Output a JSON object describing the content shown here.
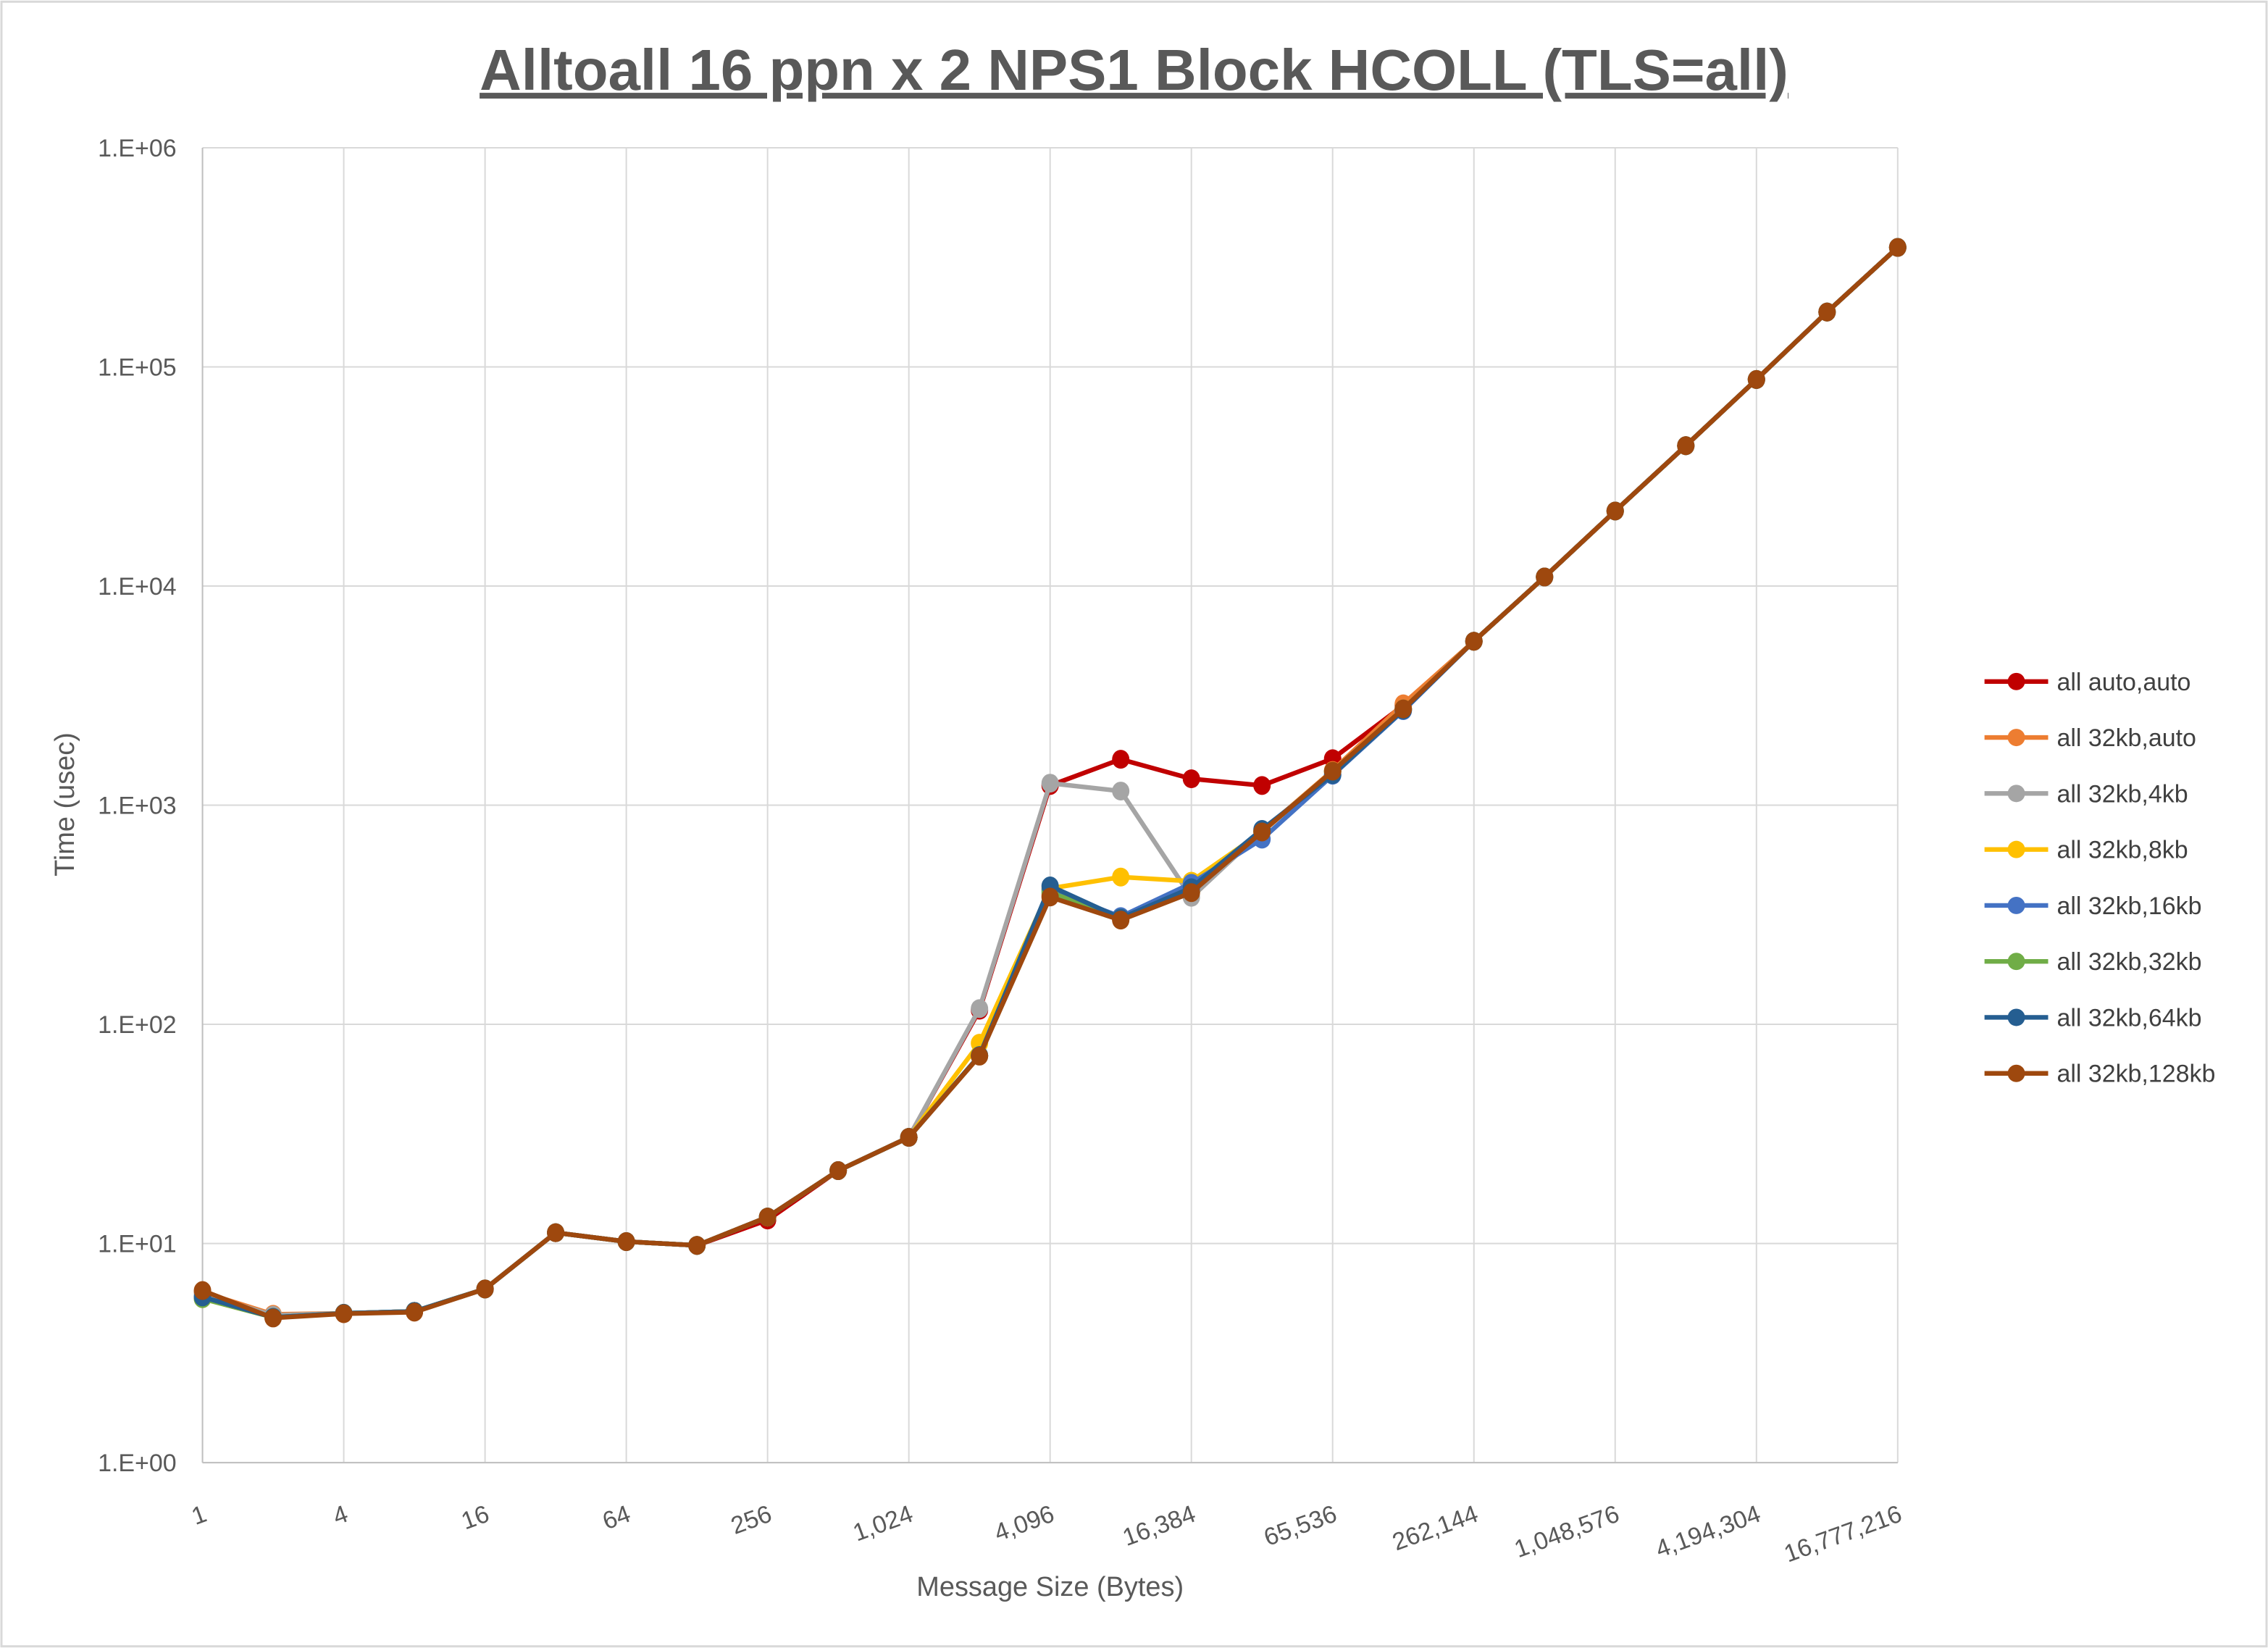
{
  "chart_data": {
    "type": "line",
    "title": "Alltoall 16 ppn x 2 NPS1 Block HCOLL (TLS=all)",
    "xlabel": "Message Size (Bytes)",
    "ylabel": "Time (usec)",
    "x_scale": "log2",
    "y_scale": "log10",
    "xlim": [
      1,
      16777216
    ],
    "ylim": [
      1,
      1000000
    ],
    "grid": true,
    "legend_position": "right",
    "x": [
      1,
      2,
      4,
      8,
      16,
      32,
      64,
      128,
      256,
      512,
      1024,
      2048,
      4096,
      8192,
      16384,
      32768,
      65536,
      131072,
      262144,
      524288,
      1048576,
      2097152,
      4194304,
      8388608,
      16777216
    ],
    "x_tick_labels": [
      "1",
      "4",
      "16",
      "64",
      "256",
      "1,024",
      "4,096",
      "16,384",
      "65,536",
      "262,144",
      "1,048,576",
      "4,194,304",
      "16,777,216"
    ],
    "y_tick_labels": [
      "1.E+00",
      "1.E+01",
      "1.E+02",
      "1.E+03",
      "1.E+04",
      "1.E+05",
      "1.E+06"
    ],
    "series": [
      {
        "name": "all auto,auto",
        "color": "#C00000",
        "values": [
          6.0,
          4.7,
          4.8,
          4.9,
          6.2,
          11.2,
          10.2,
          9.8,
          12.8,
          21.5,
          30.5,
          116,
          1230,
          1620,
          1320,
          1230,
          1630,
          2850,
          5600,
          11000,
          22000,
          43700,
          87600,
          178000,
          351000
        ]
      },
      {
        "name": "all 32kb,auto",
        "color": "#ED7D31",
        "values": [
          6.0,
          4.75,
          4.8,
          4.9,
          6.2,
          11.2,
          10.2,
          9.8,
          13.2,
          21.5,
          30.5,
          72,
          390,
          300,
          400,
          760,
          1440,
          2900,
          5600,
          11000,
          22000,
          43700,
          87600,
          178000,
          351000
        ]
      },
      {
        "name": "all 32kb,4kb",
        "color": "#A5A5A5",
        "values": [
          5.9,
          4.7,
          4.8,
          4.9,
          6.2,
          11.2,
          10.2,
          9.8,
          13.2,
          21.5,
          30.5,
          118,
          1260,
          1160,
          380,
          760,
          1420,
          2750,
          5600,
          11000,
          22000,
          43700,
          87600,
          178000,
          351000
        ]
      },
      {
        "name": "all 32kb,8kb",
        "color": "#FFC000",
        "values": [
          5.6,
          4.6,
          4.8,
          4.9,
          6.2,
          11.2,
          10.2,
          9.8,
          13.2,
          21.5,
          30.5,
          82,
          417,
          470,
          450,
          755,
          1430,
          2750,
          5600,
          11000,
          22000,
          43700,
          87600,
          178000,
          351000
        ]
      },
      {
        "name": "all 32kb,16kb",
        "color": "#4472C4",
        "values": [
          5.7,
          4.6,
          4.8,
          4.9,
          6.2,
          11.2,
          10.2,
          9.8,
          13.2,
          21.5,
          30.5,
          72,
          410,
          310,
          440,
          700,
          1370,
          2700,
          5600,
          11000,
          22000,
          43700,
          87600,
          178000,
          351000
        ]
      },
      {
        "name": "all 32kb,32kb",
        "color": "#70AD47",
        "values": [
          5.6,
          4.6,
          4.8,
          4.9,
          6.2,
          11.2,
          10.2,
          9.8,
          13.2,
          21.5,
          30.5,
          72,
          400,
          305,
          400,
          760,
          1420,
          2750,
          5600,
          11000,
          22000,
          43700,
          87600,
          178000,
          351000
        ]
      },
      {
        "name": "all 32kb,64kb",
        "color": "#255E91",
        "values": [
          5.7,
          4.6,
          4.8,
          4.9,
          6.2,
          11.2,
          10.2,
          9.8,
          13.2,
          21.5,
          30.5,
          72,
          428,
          305,
          420,
          775,
          1380,
          2720,
          5600,
          11000,
          22000,
          43700,
          87600,
          178000,
          351000
        ]
      },
      {
        "name": "all 32kb,128kb",
        "color": "#9E480E",
        "values": [
          6.1,
          4.57,
          4.78,
          4.86,
          6.2,
          11.2,
          10.2,
          9.8,
          13.2,
          21.5,
          30.5,
          71.6,
          381,
          299,
          399,
          755,
          1430,
          2750,
          5600,
          11000,
          22000,
          43700,
          87600,
          178000,
          351000
        ]
      }
    ]
  }
}
